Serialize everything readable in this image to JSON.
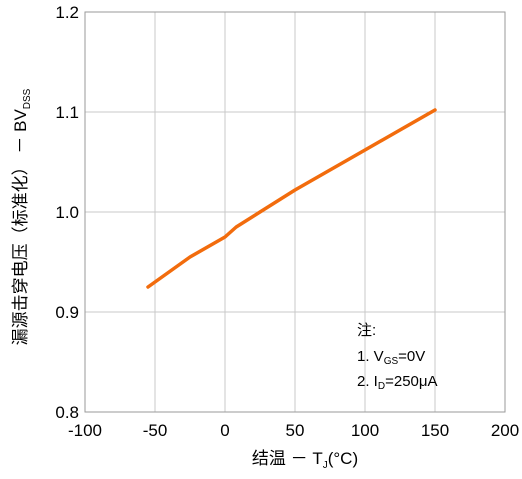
{
  "chart_data": {
    "type": "line",
    "title": "",
    "xlabel_main": "结温 － T",
    "xlabel_sub": "J",
    "xlabel_unit": "(°C)",
    "ylabel_main": "漏源击穿电压（标准化） － BV",
    "ylabel_sub": "DSS",
    "xlim": [
      -100,
      200
    ],
    "ylim": [
      0.8,
      1.2
    ],
    "xticks": [
      "-100",
      "-50",
      "0",
      "50",
      "100",
      "150",
      "200"
    ],
    "yticks": [
      "0.8",
      "0.9",
      "1.0",
      "1.1",
      "1.2"
    ],
    "grid": true,
    "series": [
      {
        "color": "#f26c0d",
        "x": [
          -55,
          -25,
          0,
          8,
          25,
          50,
          75,
          100,
          125,
          150
        ],
        "y": [
          0.925,
          0.955,
          0.975,
          0.985,
          1.0,
          1.022,
          1.042,
          1.062,
          1.082,
          1.102
        ]
      }
    ],
    "annotation": {
      "header": "注:",
      "line1_pre": "1. V",
      "line1_sub": "GS",
      "line1_post": "=0V",
      "line2_pre": "2. I",
      "line2_sub": "D",
      "line2_post": "=250μA"
    }
  }
}
